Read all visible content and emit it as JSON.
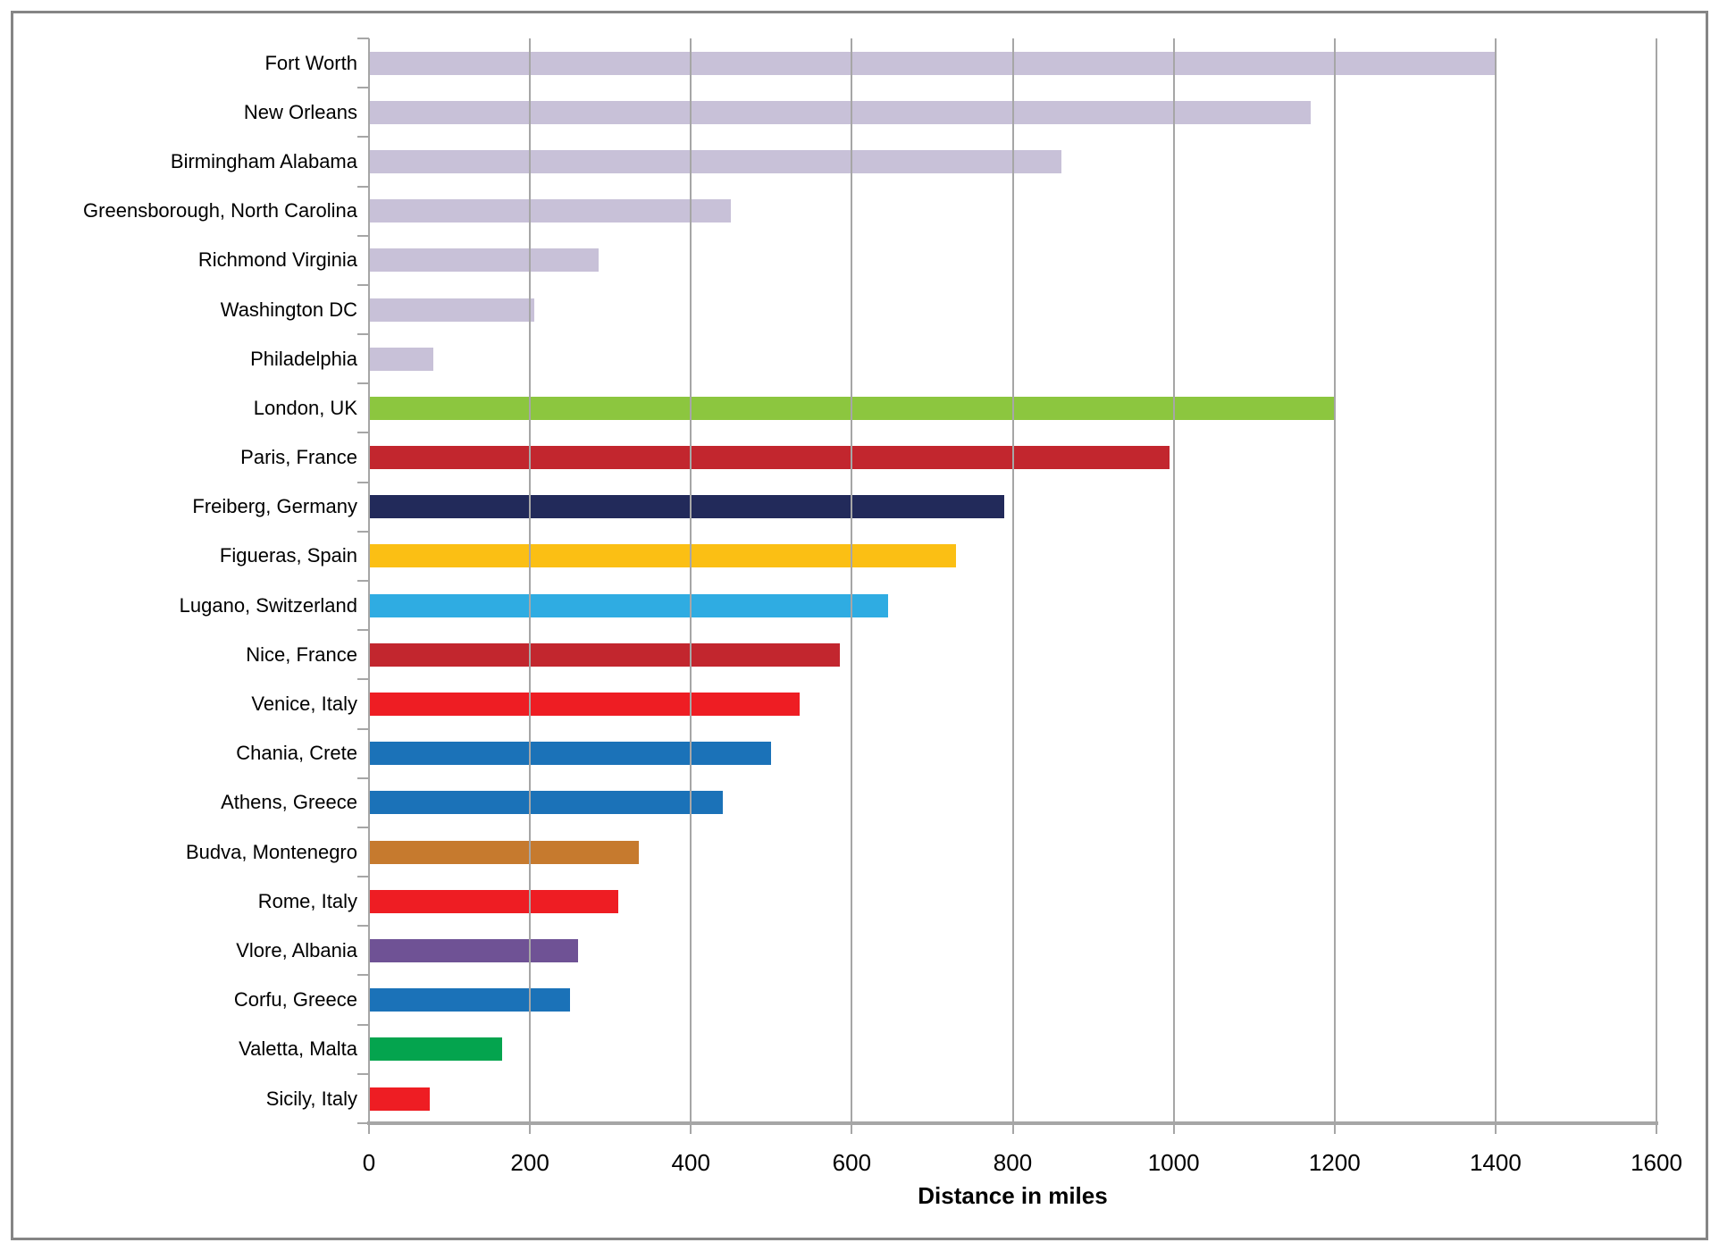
{
  "chart_data": {
    "type": "bar",
    "orientation": "horizontal",
    "title": "",
    "xlabel": "Distance in miles",
    "ylabel": "",
    "xlim": [
      0,
      1600
    ],
    "x_ticks": [
      0,
      200,
      400,
      600,
      800,
      1000,
      1200,
      1400,
      1600
    ],
    "x_tick_labels": [
      "0",
      "200",
      "400",
      "600",
      "800",
      "1000",
      "1200",
      "1400",
      "1600"
    ],
    "grid": "vertical gridlines every 200, no horizontal gridlines",
    "legend": "none",
    "categories": [
      "Fort Worth",
      "New Orleans",
      "Birmingham Alabama",
      "Greensborough, North Carolina",
      "Richmond Virginia",
      "Washington DC",
      "Philadelphia",
      "London, UK",
      "Paris, France",
      "Freiberg, Germany",
      "Figueras, Spain",
      "Lugano, Switzerland",
      "Nice, France",
      "Venice, Italy",
      "Chania, Crete",
      "Athens, Greece",
      "Budva, Montenegro",
      "Rome, Italy",
      "Vlore, Albania",
      "Corfu, Greece",
      "Valetta, Malta",
      "Sicily, Italy"
    ],
    "values": [
      1400,
      1170,
      860,
      450,
      285,
      205,
      80,
      1200,
      995,
      790,
      730,
      645,
      585,
      535,
      500,
      440,
      335,
      310,
      260,
      250,
      165,
      75
    ],
    "bar_colors": [
      "#C8C1D8",
      "#C8C1D8",
      "#C8C1D8",
      "#C8C1D8",
      "#C8C1D8",
      "#C8C1D8",
      "#C8C1D8",
      "#8CC63F",
      "#C2262E",
      "#222A5A",
      "#FBBF14",
      "#2FACE2",
      "#C2262E",
      "#EE1D23",
      "#1B72B8",
      "#1B72B8",
      "#C67A2E",
      "#EE1D23",
      "#6F5295",
      "#1B72B8",
      "#04A44E",
      "#EE1D23"
    ]
  },
  "colors": {
    "gridline": "#A6A6A6",
    "axis_line": "#A6A6A6",
    "frame_border": "#858585",
    "text": "#000000",
    "background": "#FFFFFF"
  }
}
